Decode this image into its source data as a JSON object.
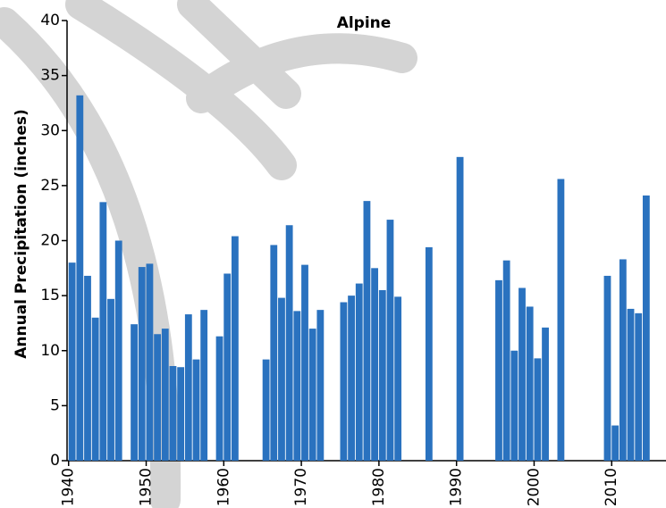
{
  "chart_data": {
    "type": "bar",
    "title": "Alpine",
    "ylabel": "Annual Precipitation (inches)",
    "color": "#2a72bf",
    "x": [
      1940,
      1941,
      1942,
      1943,
      1944,
      1945,
      1946,
      1948,
      1949,
      1950,
      1951,
      1952,
      1953,
      1954,
      1955,
      1956,
      1957,
      1959,
      1960,
      1961,
      1965,
      1966,
      1967,
      1968,
      1969,
      1970,
      1971,
      1972,
      1975,
      1976,
      1977,
      1978,
      1979,
      1980,
      1981,
      1982,
      1986,
      1990,
      1995,
      1996,
      1997,
      1998,
      1999,
      2000,
      2001,
      2003,
      2009,
      2010,
      2011,
      2012,
      2013,
      2014
    ],
    "values": [
      18.0,
      33.2,
      16.8,
      13.0,
      23.5,
      14.7,
      20.0,
      12.4,
      17.6,
      17.9,
      11.5,
      12.0,
      8.6,
      8.5,
      13.3,
      9.2,
      13.7,
      11.3,
      17.0,
      20.4,
      9.2,
      19.6,
      14.8,
      21.4,
      13.6,
      17.8,
      12.0,
      13.7,
      14.4,
      15.0,
      16.1,
      23.6,
      17.5,
      15.5,
      21.9,
      14.9,
      19.4,
      27.6,
      16.4,
      18.2,
      10.0,
      15.7,
      14.0,
      9.3,
      12.1,
      25.6,
      16.8,
      3.2,
      18.3,
      13.8,
      13.4,
      24.1
    ],
    "xlim": [
      1939.8,
      2017
    ],
    "xticks": [
      1940,
      1950,
      1960,
      1970,
      1980,
      1990,
      2000,
      2010
    ],
    "ylim": [
      0,
      40
    ],
    "yticks": [
      0,
      5,
      10,
      15,
      20,
      25,
      30,
      35,
      40
    ]
  }
}
